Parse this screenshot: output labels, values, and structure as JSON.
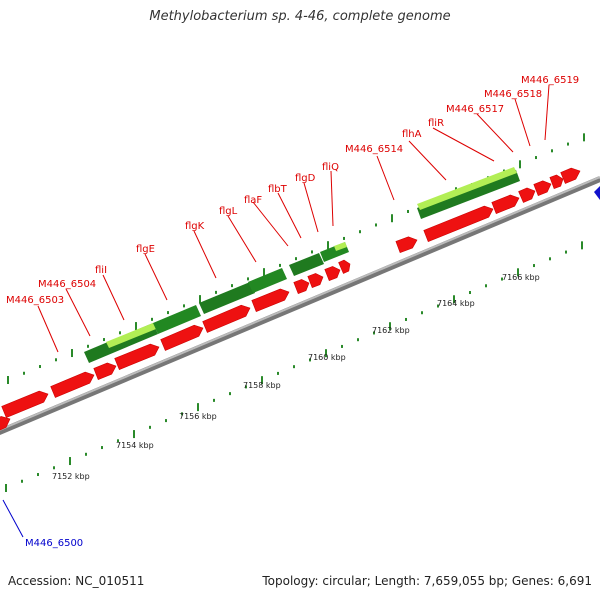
{
  "title": "Methylobacterium sp. 4-46, complete genome",
  "footer": {
    "accession": "Accession: NC_010511",
    "summary": "Topology: circular; Length: 7,659,055 bp; Genes: 6,691"
  },
  "scale_labels": [
    "7152 kbp",
    "7154 kbp",
    "7156 kbp",
    "7158 kbp",
    "7160 kbp",
    "7162 kbp",
    "7164 kbp",
    "7166 kbp"
  ],
  "gene_labels": [
    {
      "text": "M446_6503",
      "color": "red"
    },
    {
      "text": "M446_6504",
      "color": "red"
    },
    {
      "text": "fliI",
      "color": "red"
    },
    {
      "text": "flgE",
      "color": "red"
    },
    {
      "text": "flgK",
      "color": "red"
    },
    {
      "text": "flgL",
      "color": "red"
    },
    {
      "text": "flaF",
      "color": "red"
    },
    {
      "text": "flbT",
      "color": "red"
    },
    {
      "text": "flgD",
      "color": "red"
    },
    {
      "text": "fliQ",
      "color": "red"
    },
    {
      "text": "M446_6514",
      "color": "red"
    },
    {
      "text": "flhA",
      "color": "red"
    },
    {
      "text": "fliR",
      "color": "red"
    },
    {
      "text": "M446_6517",
      "color": "red"
    },
    {
      "text": "M446_6518",
      "color": "red"
    },
    {
      "text": "M446_6519",
      "color": "red"
    },
    {
      "text": "M446_6500",
      "color": "blue"
    }
  ],
  "colors": {
    "gene": "#ee1111",
    "gene_highlight": "#ff6666",
    "cds": "#228822",
    "cds_light": "#aaee44",
    "backbone": "#999999",
    "tick": "#2a8a2a",
    "label_red": "#dd0000",
    "label_blue": "#0000cc"
  }
}
